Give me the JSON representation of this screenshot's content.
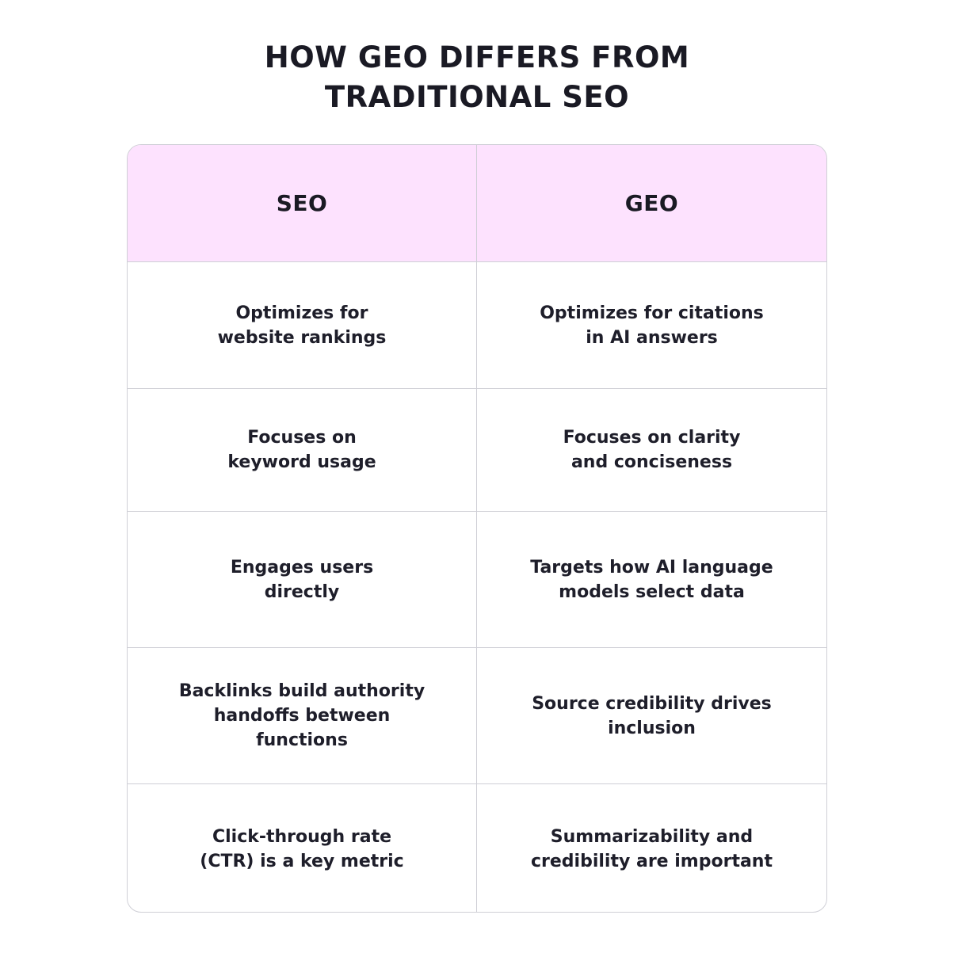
{
  "title": {
    "line1": "HOW GEO DIFFERS FROM",
    "line2": "TRADITIONAL SEO"
  },
  "table": {
    "headers": {
      "seo": "SEO",
      "geo": "GEO"
    },
    "rows": [
      {
        "seo": "Optimizes for\nwebsite rankings",
        "geo": "Optimizes for citations\nin AI answers"
      },
      {
        "seo": "Focuses on\nkeyword usage",
        "geo": "Focuses on clarity\nand conciseness"
      },
      {
        "seo": "Engages users\ndirectly",
        "geo": "Targets how AI language\nmodels select data"
      },
      {
        "seo": "Backlinks build authority\nhandoffs between\nfunctions",
        "geo": "Source credibility drives\ninclusion"
      },
      {
        "seo": "Click-through rate\n(CTR) is a key metric",
        "geo": "Summarizability and\ncredibility are important"
      }
    ]
  },
  "colors": {
    "header_background": "#fde2fe",
    "border": "#cfcfd6",
    "text": "#1e1e2a"
  }
}
